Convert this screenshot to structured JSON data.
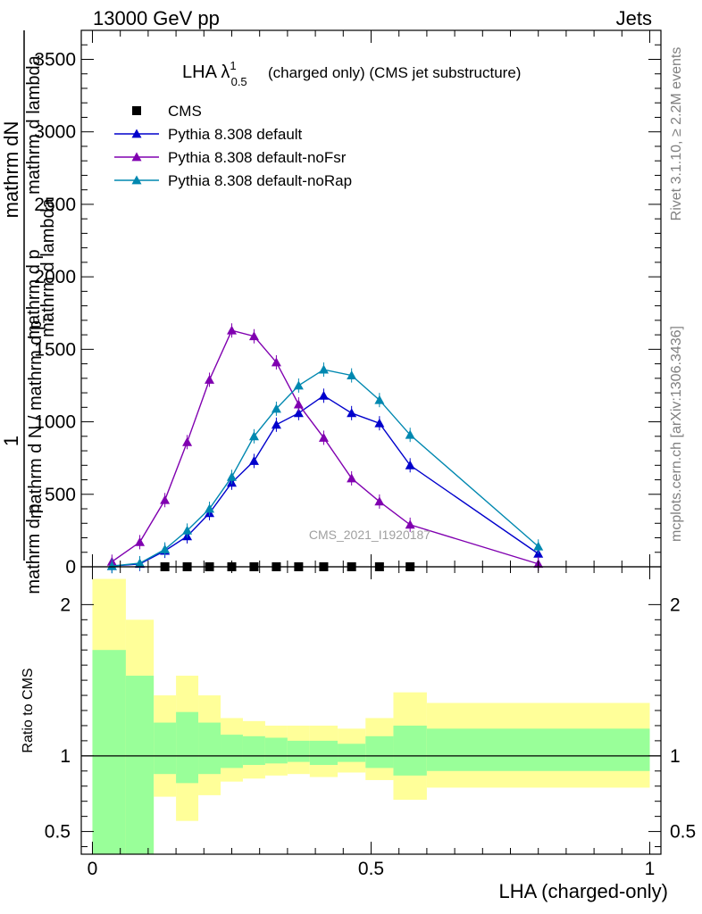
{
  "header": {
    "left": "13000 GeV pp",
    "right": "Jets"
  },
  "side_labels": {
    "rivet": "Rivet 3.1.10, ≥ 2.2M events",
    "mcplots": "mcplots.cern.ch [arXiv:1306.3436]"
  },
  "title": {
    "main": "LHA λ",
    "sup": "1",
    "sub": "0.5",
    "rest": "(charged only) (CMS jet substructure)"
  },
  "watermark": "CMS_2021_I1920187",
  "ylabel_top": {
    "one": "1",
    "num1": "mathrm dN",
    "num2": "mathrm d p",
    "num3": "mathrm d lambda",
    "den1": "mathrm d N / mathrm d p",
    "den2": "mathrm d p",
    "den3": "mathrm d lambda",
    "sub_T": "T"
  },
  "colors": {
    "cms": "#000000",
    "default": "#0000cc",
    "noFsr": "#8000b0",
    "noRap": "#0088b0",
    "band_inner": "#99ff99",
    "band_outer": "#ffff99"
  },
  "chart_data": [
    {
      "type": "line",
      "panel": "main",
      "xlim": [
        -0.02,
        1.02
      ],
      "ylim": [
        0,
        3700
      ],
      "yticks": [
        0,
        500,
        1000,
        1500,
        2000,
        2500,
        3000,
        3500
      ],
      "ytick_labels": [
        "0",
        "500",
        "1000",
        "1500",
        "2000",
        "2500",
        "3000",
        "3500"
      ],
      "legend_position": "top-left",
      "series": [
        {
          "name": "CMS",
          "marker": "square",
          "x": [
            0.13,
            0.17,
            0.21,
            0.25,
            0.29,
            0.33,
            0.37,
            0.415,
            0.465,
            0.515,
            0.57
          ],
          "y": [
            0,
            0,
            0,
            0,
            0,
            0,
            0,
            0,
            0,
            0,
            0
          ]
        },
        {
          "name": "Pythia 8.308 default",
          "marker": "triangle",
          "x": [
            0.035,
            0.085,
            0.13,
            0.17,
            0.21,
            0.25,
            0.29,
            0.33,
            0.37,
            0.415,
            0.465,
            0.515,
            0.57,
            0.8
          ],
          "y": [
            5,
            20,
            110,
            210,
            370,
            580,
            730,
            980,
            1060,
            1180,
            1060,
            990,
            700,
            90
          ]
        },
        {
          "name": "Pythia 8.308 default-noFsr",
          "marker": "triangle",
          "x": [
            0.035,
            0.085,
            0.13,
            0.17,
            0.21,
            0.25,
            0.29,
            0.33,
            0.37,
            0.415,
            0.465,
            0.515,
            0.57,
            0.8
          ],
          "y": [
            35,
            170,
            460,
            860,
            1290,
            1630,
            1590,
            1410,
            1120,
            890,
            610,
            450,
            290,
            20
          ]
        },
        {
          "name": "Pythia 8.308 default-noRap",
          "marker": "triangle",
          "x": [
            0.035,
            0.085,
            0.13,
            0.17,
            0.21,
            0.25,
            0.29,
            0.33,
            0.37,
            0.415,
            0.465,
            0.515,
            0.57,
            0.8
          ],
          "y": [
            5,
            25,
            120,
            250,
            400,
            620,
            900,
            1090,
            1250,
            1360,
            1320,
            1150,
            910,
            140
          ]
        }
      ]
    },
    {
      "type": "area",
      "panel": "ratio",
      "xlabel": "LHA (charged-only)",
      "ylabel": "Ratio to CMS",
      "xlim": [
        -0.02,
        1.02
      ],
      "ylim": [
        0.35,
        2.25
      ],
      "yticks": [
        0.5,
        1,
        2
      ],
      "ytick_labels": [
        "0.5",
        "1",
        "2"
      ],
      "xticks": [
        0,
        0.5,
        1
      ],
      "xtick_labels": [
        "0",
        "0.5",
        "1"
      ],
      "bins": [
        [
          0.0,
          0.06
        ],
        [
          0.06,
          0.11
        ],
        [
          0.11,
          0.15
        ],
        [
          0.15,
          0.19
        ],
        [
          0.19,
          0.23
        ],
        [
          0.23,
          0.27
        ],
        [
          0.27,
          0.31
        ],
        [
          0.31,
          0.35
        ],
        [
          0.35,
          0.39
        ],
        [
          0.39,
          0.44
        ],
        [
          0.44,
          0.49
        ],
        [
          0.49,
          0.54
        ],
        [
          0.54,
          0.6
        ],
        [
          0.6,
          1.0
        ]
      ],
      "inner_band": [
        [
          0.0,
          1.7
        ],
        [
          0.0,
          1.53
        ],
        [
          0.88,
          1.22
        ],
        [
          0.82,
          1.29
        ],
        [
          0.88,
          1.22
        ],
        [
          0.92,
          1.14
        ],
        [
          0.94,
          1.13
        ],
        [
          0.95,
          1.12
        ],
        [
          0.96,
          1.1
        ],
        [
          0.94,
          1.1
        ],
        [
          0.96,
          1.08
        ],
        [
          0.92,
          1.13
        ],
        [
          0.87,
          1.2
        ],
        [
          0.9,
          1.18
        ]
      ],
      "outer_band": [
        [
          0.0,
          2.17
        ],
        [
          0.0,
          1.9
        ],
        [
          0.73,
          1.4
        ],
        [
          0.57,
          1.53
        ],
        [
          0.74,
          1.4
        ],
        [
          0.83,
          1.25
        ],
        [
          0.85,
          1.23
        ],
        [
          0.87,
          1.2
        ],
        [
          0.88,
          1.2
        ],
        [
          0.86,
          1.2
        ],
        [
          0.89,
          1.18
        ],
        [
          0.84,
          1.25
        ],
        [
          0.71,
          1.42
        ],
        [
          0.79,
          1.35
        ]
      ]
    }
  ]
}
